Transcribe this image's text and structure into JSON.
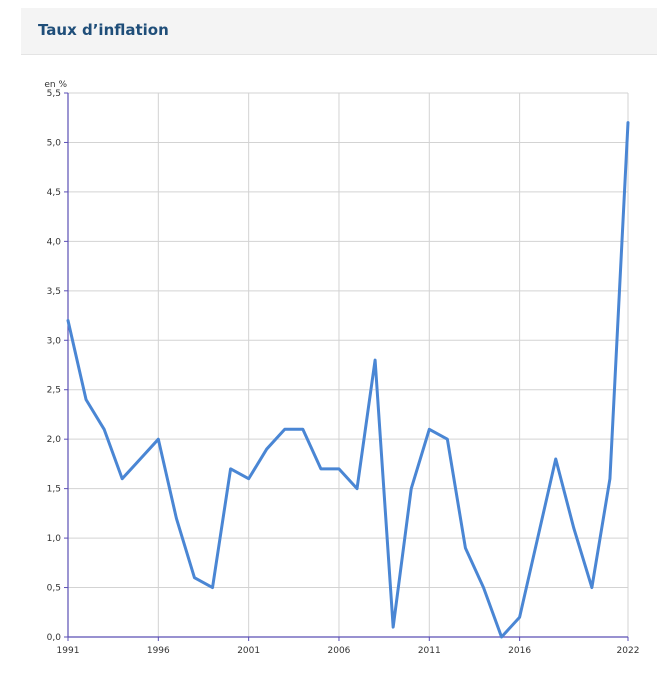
{
  "panel": {
    "title": "Taux d’inflation"
  },
  "chart_data": {
    "type": "line",
    "unit_label": "en %",
    "x": [
      1991,
      1992,
      1993,
      1994,
      1995,
      1996,
      1997,
      1998,
      1999,
      2000,
      2001,
      2002,
      2003,
      2004,
      2005,
      2006,
      2007,
      2008,
      2009,
      2010,
      2011,
      2012,
      2013,
      2014,
      2015,
      2016,
      2017,
      2018,
      2019,
      2020,
      2021,
      2022
    ],
    "series": [
      {
        "values": [
          3.2,
          2.4,
          2.1,
          1.6,
          1.8,
          2.0,
          1.2,
          0.6,
          0.5,
          1.7,
          1.6,
          1.9,
          2.1,
          2.1,
          1.7,
          1.7,
          1.5,
          2.8,
          0.1,
          1.5,
          2.1,
          2.0,
          0.9,
          0.5,
          0.0,
          0.2,
          1.0,
          1.8,
          1.1,
          0.5,
          1.6,
          5.2
        ]
      }
    ],
    "x_ticks": [
      1991,
      1996,
      2001,
      2006,
      2011,
      2016,
      2022
    ],
    "x_tick_labels": [
      "1991",
      "1996",
      "2001",
      "2006",
      "2011",
      "2016",
      "2022"
    ],
    "y_ticks": [
      0,
      0.5,
      1.0,
      1.5,
      2.0,
      2.5,
      3.0,
      3.5,
      4.0,
      4.5,
      5.0,
      5.5
    ],
    "y_tick_labels": [
      "0,0",
      "0,5",
      "1,0",
      "1,5",
      "2,0",
      "2,5",
      "3,0",
      "3,5",
      "4,0",
      "4,5",
      "5,0",
      "5,5"
    ],
    "xlim": [
      1991,
      2022
    ],
    "ylim": [
      0,
      5.5
    ],
    "grid": true,
    "colors": {
      "line": "#4a86d4",
      "axis": "#5b4fb5",
      "grid": "#d3d3d3"
    }
  }
}
